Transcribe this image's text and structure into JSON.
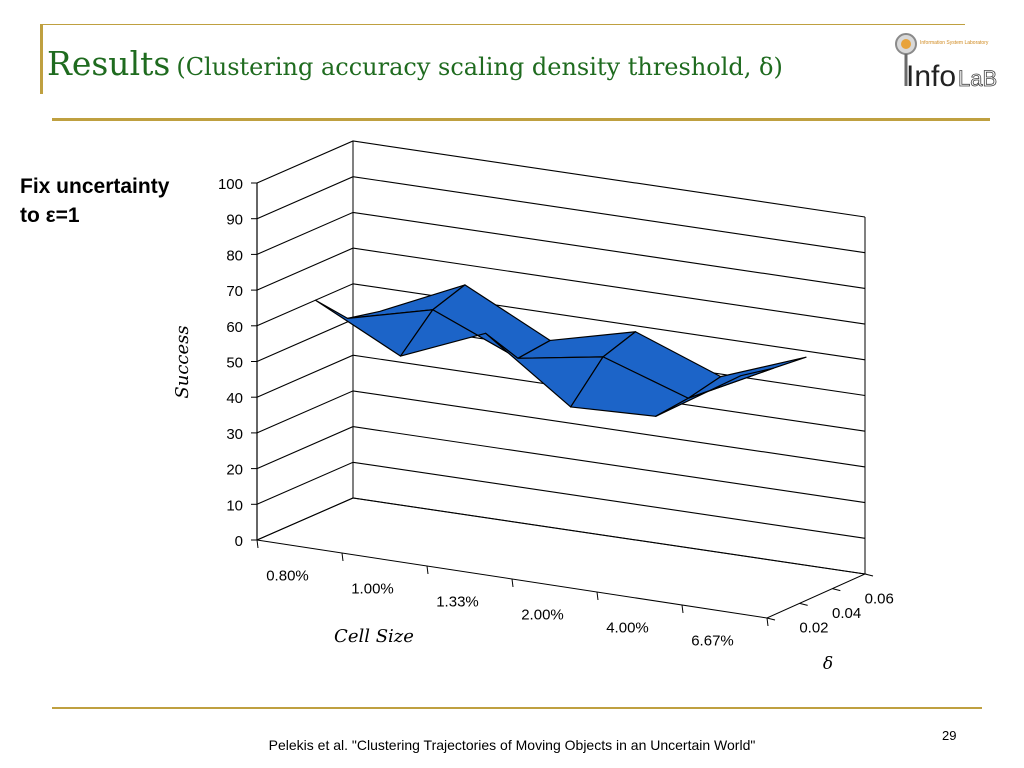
{
  "slide": {
    "title_main": "Results",
    "title_sub": "(Clustering accuracy scaling density threshold, δ)",
    "side_note_line1": "Fix uncertainty",
    "side_note_line2": "to ε=1",
    "footer_citation": "Pelekis et al. \"Clustering Trajectories of Moving Objects in an Uncertain World\"",
    "page_number": "29",
    "logo_text_info": "Info",
    "logo_text_lab": "LaB",
    "logo_tagline": "Information System Laboratory"
  },
  "colors": {
    "accent_gold": "#bfa040",
    "title_green": "#1f6b1f",
    "surface_blue": "#1c64c8",
    "surface_pink": "#f49a9a",
    "grid_line": "#000000"
  },
  "chart_data": {
    "type": "3d-surface",
    "zlabel": "Success",
    "xlabel": "Cell Size",
    "ylabel": "δ",
    "z_ticks": [
      "0",
      "10",
      "20",
      "30",
      "40",
      "50",
      "60",
      "70",
      "80",
      "90",
      "100"
    ],
    "zlim": [
      0,
      100
    ],
    "categories": [
      "0.80%",
      "1.00%",
      "1.33%",
      "2.00%",
      "4.00%",
      "6.67%"
    ],
    "delta_ticks": [
      "0.02",
      "0.04",
      "0.06"
    ],
    "series": [
      {
        "name": "0.02",
        "values": [
          67,
          55,
          65,
          48,
          49,
          64
        ]
      },
      {
        "name": "0.04",
        "values": [
          58,
          64,
          54,
          58,
          50,
          62
        ]
      },
      {
        "name": "0.06",
        "values": [
          56,
          67,
          55,
          61,
          52,
          61
        ]
      }
    ],
    "grid": true,
    "legend": "none"
  }
}
